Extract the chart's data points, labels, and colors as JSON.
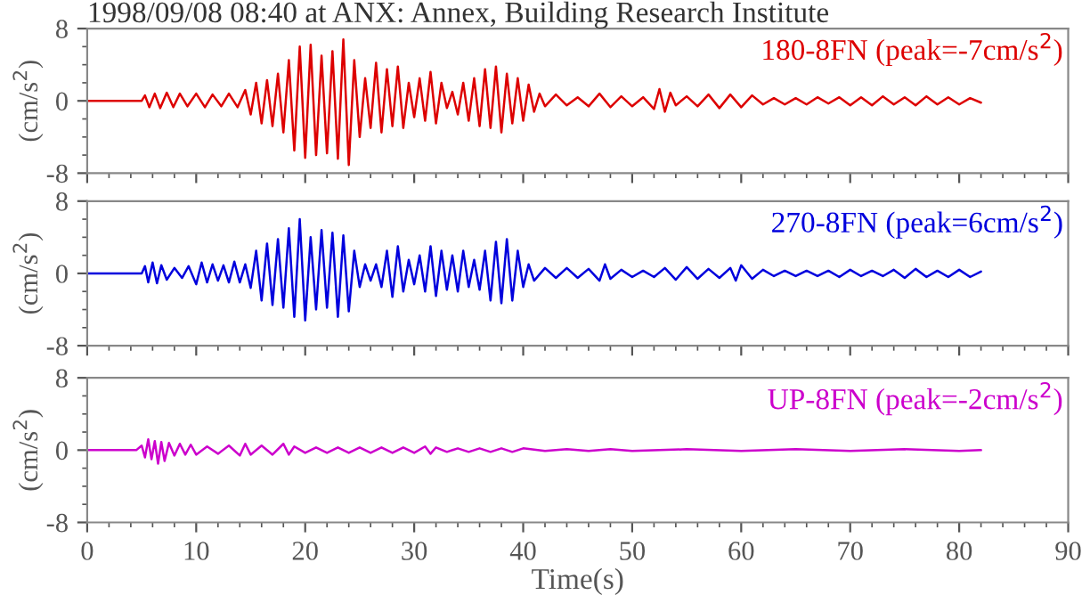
{
  "chart_data": [
    {
      "type": "line",
      "title": "1998/09/08 08:40 at ANX: Annex, Building Research Institute",
      "ylabel": "(cm/s$^{2}$)",
      "annotations": [
        "180-8FN (peak=-7cm/s$^{2}$)"
      ],
      "xlim": [
        0,
        90
      ],
      "ylim": [
        -8,
        8
      ],
      "yticks": [
        -8,
        0,
        8
      ],
      "tick_labels": "y",
      "grid": false,
      "x": [
        0,
        5,
        5.3,
        5.7,
        6.2,
        6.7,
        7.3,
        7.9,
        8.5,
        9.2,
        10,
        10.8,
        11.5,
        12.3,
        13,
        13.8,
        14.5,
        15,
        15.5,
        16,
        16.5,
        17,
        17.5,
        18,
        18.5,
        19,
        19.5,
        20,
        20.5,
        21,
        21.5,
        22,
        22.5,
        23,
        23.5,
        24,
        24.5,
        25,
        25.5,
        26,
        26.5,
        27,
        27.5,
        28,
        28.5,
        29,
        29.5,
        30,
        30.5,
        31,
        31.5,
        32,
        32.5,
        33,
        33.5,
        34,
        34.5,
        35,
        35.5,
        36,
        36.5,
        37,
        37.5,
        38,
        38.5,
        39,
        39.5,
        40,
        40.5,
        41,
        41.5,
        42,
        43,
        44,
        45,
        46,
        47,
        48,
        49,
        50,
        51,
        52,
        52.5,
        53,
        53.5,
        54,
        55,
        56,
        57,
        58,
        59,
        60,
        61,
        62,
        63,
        64,
        65,
        66,
        67,
        68,
        69,
        70,
        71,
        72,
        73,
        74,
        75,
        76,
        77,
        78,
        79,
        80,
        81,
        82
      ],
      "series": [
        {
          "color": "#dd0000",
          "values": [
            0,
            0,
            0.6,
            -0.7,
            0.8,
            -0.8,
            0.9,
            -0.7,
            0.8,
            -0.6,
            0.8,
            -0.7,
            0.7,
            -0.6,
            0.8,
            -0.7,
            1.2,
            -1.5,
            2.0,
            -2.5,
            2.3,
            -2.8,
            3.0,
            -3.5,
            4.5,
            -5.5,
            6.0,
            -6.3,
            6.2,
            -6.0,
            5.0,
            -5.8,
            5.5,
            -6.4,
            6.8,
            -7.1,
            4.5,
            -4.0,
            2.5,
            -3.0,
            4.2,
            -3.5,
            3.5,
            -2.8,
            3.8,
            -3.0,
            2.0,
            -1.8,
            2.5,
            -2.2,
            3.2,
            -2.5,
            2.0,
            -0.8,
            1.0,
            -1.5,
            2.0,
            -2.2,
            2.5,
            -2.8,
            3.5,
            -3.0,
            3.8,
            -3.5,
            3.0,
            -2.5,
            2.5,
            -2.2,
            1.8,
            -1.2,
            0.8,
            -0.6,
            0.7,
            -0.5,
            0.4,
            -0.6,
            0.8,
            -0.7,
            0.5,
            -0.6,
            0.4,
            -0.9,
            1.3,
            -1.2,
            0.9,
            -0.5,
            0.5,
            -0.6,
            0.7,
            -0.8,
            0.7,
            -0.7,
            0.6,
            -0.4,
            0.3,
            -0.4,
            0.3,
            -0.4,
            0.4,
            -0.3,
            0.4,
            -0.5,
            0.4,
            -0.5,
            0.5,
            -0.4,
            0.4,
            -0.5,
            0.5,
            -0.4,
            0.4,
            -0.4,
            0.3,
            -0.2
          ]
        }
      ]
    },
    {
      "type": "line",
      "ylabel": "(cm/s$^{2}$)",
      "annotations": [
        "270-8FN (peak=6cm/s$^{2}$)"
      ],
      "xlim": [
        0,
        90
      ],
      "ylim": [
        -8,
        8
      ],
      "yticks": [
        -8,
        0,
        8
      ],
      "tick_labels": "y",
      "grid": false,
      "x": [
        0,
        5,
        5.3,
        5.6,
        6,
        6.4,
        6.8,
        7.3,
        8,
        8.7,
        9.3,
        10,
        10.5,
        11,
        11.5,
        12,
        12.5,
        13,
        13.5,
        14,
        14.5,
        15,
        15.5,
        16,
        16.5,
        17,
        17.5,
        18,
        18.5,
        19,
        19.5,
        20,
        20.5,
        21,
        21.5,
        22,
        22.5,
        23,
        23.5,
        24,
        24.5,
        25,
        25.5,
        26,
        26.5,
        27,
        27.5,
        28,
        28.5,
        29,
        29.5,
        30,
        30.5,
        31,
        31.5,
        32,
        32.5,
        33,
        33.5,
        34,
        34.5,
        35,
        35.5,
        36,
        36.5,
        37,
        37.5,
        38,
        38.5,
        39,
        39.5,
        40,
        40.5,
        41,
        42,
        43,
        44,
        45,
        46,
        47,
        47.5,
        48,
        49,
        50,
        51,
        52,
        53,
        54,
        55,
        56,
        57,
        58,
        59,
        59.5,
        60,
        61,
        62,
        63,
        64,
        65,
        66,
        67,
        68,
        69,
        70,
        71,
        72,
        73,
        74,
        75,
        76,
        77,
        78,
        79,
        80,
        81,
        82
      ],
      "series": [
        {
          "color": "#0000dd",
          "values": [
            0,
            0,
            0.8,
            -1.0,
            1.2,
            -1.1,
            0.9,
            -0.7,
            0.6,
            -0.5,
            0.8,
            -1.2,
            1.2,
            -1.0,
            1.0,
            -0.8,
            0.9,
            -1.0,
            1.3,
            -1.0,
            1.0,
            -1.6,
            2.5,
            -3.0,
            3.3,
            -3.5,
            3.8,
            -3.8,
            5.0,
            -4.8,
            6.0,
            -5.2,
            4.0,
            -4.0,
            4.8,
            -3.8,
            4.5,
            -4.8,
            4.2,
            -4.2,
            2.5,
            -1.5,
            1.0,
            -0.8,
            1.0,
            -1.5,
            2.5,
            -2.6,
            3.0,
            -2.0,
            1.5,
            -1.2,
            2.0,
            -2.0,
            3.0,
            -2.5,
            2.5,
            -1.8,
            2.0,
            -2.0,
            2.5,
            -1.5,
            1.5,
            -1.8,
            2.5,
            -3.0,
            3.5,
            -3.3,
            3.8,
            -3.0,
            2.5,
            -1.5,
            1.0,
            -0.8,
            0.6,
            -0.5,
            0.6,
            -0.5,
            0.5,
            -0.8,
            1.0,
            -0.6,
            0.4,
            -0.4,
            0.3,
            -0.4,
            0.6,
            -0.7,
            0.7,
            -0.6,
            0.5,
            -0.5,
            0.6,
            -0.8,
            0.9,
            -0.6,
            0.4,
            -0.3,
            0.3,
            -0.3,
            0.3,
            -0.3,
            0.3,
            -0.4,
            0.4,
            -0.3,
            0.3,
            -0.3,
            0.4,
            -0.5,
            0.5,
            -0.4,
            0.3,
            -0.4,
            0.4,
            -0.4,
            0.2
          ]
        }
      ]
    },
    {
      "type": "line",
      "ylabel": "(cm/s$^{2}$)",
      "xlabel": "Time(s)",
      "annotations": [
        "UP-8FN (peak=-2cm/s$^{2}$)"
      ],
      "xlim": [
        0,
        90
      ],
      "xticks": [
        0,
        10,
        20,
        30,
        40,
        50,
        60,
        70,
        80,
        90
      ],
      "ylim": [
        -8,
        8
      ],
      "yticks": [
        -8,
        0,
        8
      ],
      "grid": false,
      "x": [
        0,
        4.5,
        5,
        5.3,
        5.6,
        5.9,
        6.2,
        6.5,
        6.8,
        7.1,
        7.5,
        8,
        8.5,
        9,
        9.5,
        10,
        11,
        12,
        13,
        14,
        14.5,
        15,
        16,
        17,
        18,
        18.5,
        19,
        20,
        21,
        22,
        23,
        24,
        25,
        26,
        27,
        28,
        29,
        30,
        31,
        31.5,
        32,
        33,
        34,
        35,
        36,
        37,
        38,
        39,
        40,
        42,
        44,
        46,
        48,
        50,
        55,
        60,
        65,
        70,
        75,
        80,
        82
      ],
      "series": [
        {
          "color": "#cc00cc",
          "values": [
            0,
            0,
            0.5,
            -0.8,
            1.2,
            -1.0,
            1.0,
            -1.5,
            0.9,
            -1.2,
            0.8,
            -0.6,
            0.7,
            -0.5,
            0.6,
            -0.5,
            0.4,
            -0.4,
            0.5,
            -0.6,
            0.7,
            -0.5,
            0.5,
            -0.5,
            0.7,
            -0.5,
            0.4,
            -0.3,
            0.3,
            -0.3,
            0.3,
            -0.3,
            0.3,
            -0.3,
            0.3,
            -0.3,
            0.3,
            -0.3,
            0.4,
            -0.4,
            0.3,
            -0.2,
            0.2,
            -0.2,
            0.2,
            -0.2,
            0.2,
            -0.2,
            0.2,
            -0.1,
            0.1,
            -0.1,
            0.1,
            -0.1,
            0.1,
            -0.1,
            0.1,
            -0.1,
            0.1,
            -0.1,
            0
          ]
        }
      ]
    }
  ]
}
